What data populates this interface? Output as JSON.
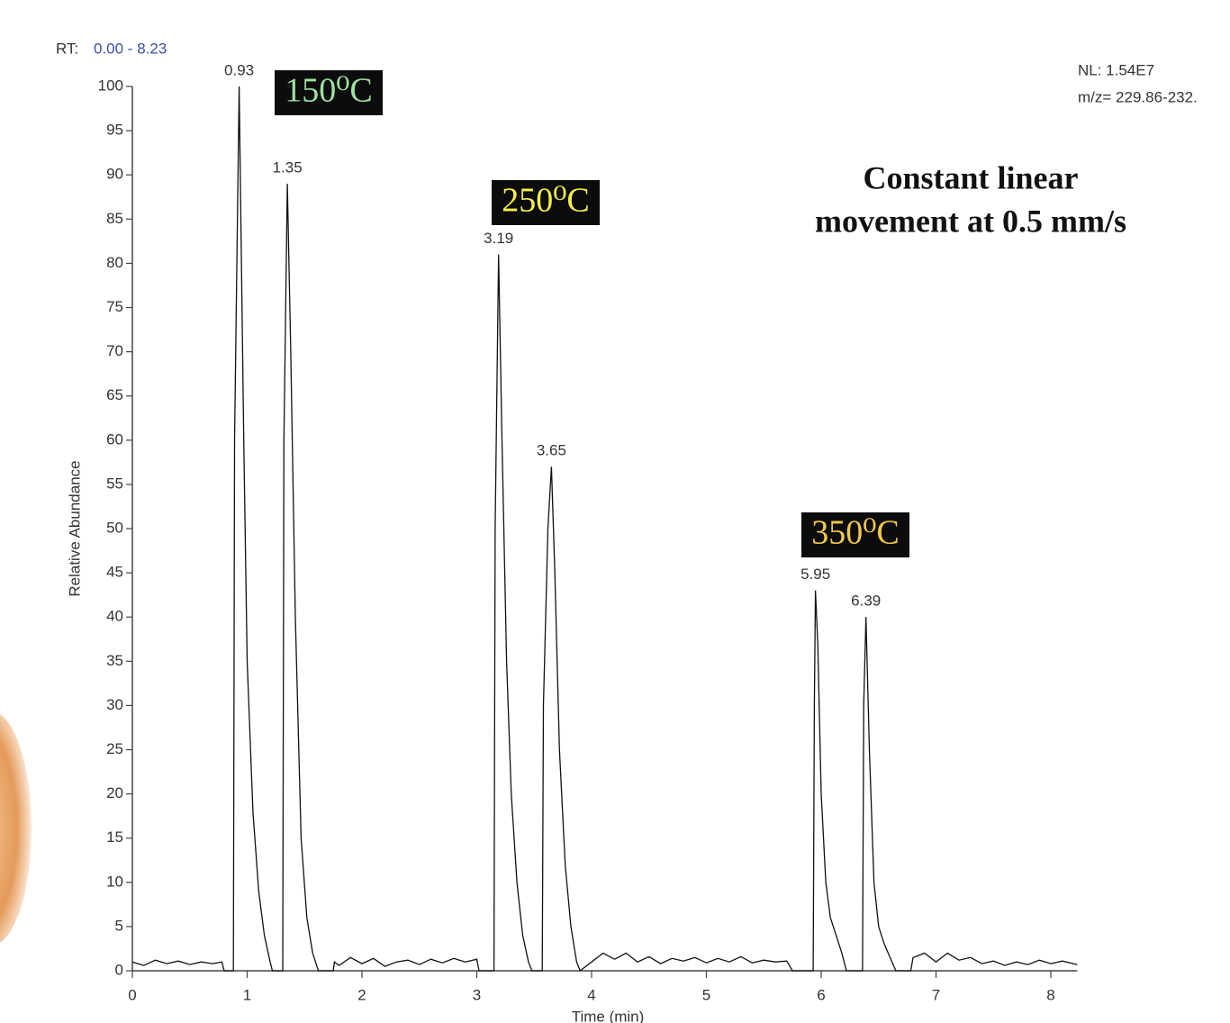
{
  "chart_data": {
    "type": "line",
    "rt_label": "RT:",
    "rt_range": "0.00 - 8.23",
    "nl": "NL: 1.54E7",
    "mz": "m/z= 229.86-232.",
    "annotation": [
      "Constant linear",
      "movement at 0.5 mm/s"
    ],
    "temperatures": [
      "150⁰C",
      "250⁰C",
      "350⁰C"
    ],
    "xlabel": "Time (min)",
    "ylabel": "Relative Abundance",
    "xlim": [
      0,
      8.23
    ],
    "ylim": [
      0,
      100
    ],
    "xticks": [
      0,
      1,
      2,
      3,
      4,
      5,
      6,
      7,
      8
    ],
    "yticks": [
      0,
      5,
      10,
      15,
      20,
      25,
      30,
      35,
      40,
      45,
      50,
      55,
      60,
      65,
      70,
      75,
      80,
      85,
      90,
      95,
      100
    ],
    "color": "#111111",
    "peak_labels": [
      0.93,
      1.35,
      3.19,
      3.65,
      5.95,
      6.39
    ],
    "x": [
      0,
      0.1,
      0.2,
      0.3,
      0.4,
      0.5,
      0.6,
      0.7,
      0.78,
      0.8,
      0.88,
      0.89,
      0.93,
      0.97,
      1.0,
      1.05,
      1.1,
      1.15,
      1.2,
      1.22,
      1.31,
      1.32,
      1.35,
      1.38,
      1.42,
      1.47,
      1.52,
      1.57,
      1.62,
      1.75,
      1.76,
      1.8,
      1.9,
      2.0,
      2.1,
      2.2,
      2.3,
      2.4,
      2.5,
      2.6,
      2.7,
      2.8,
      2.9,
      3.0,
      3.02,
      3.15,
      3.16,
      3.19,
      3.22,
      3.26,
      3.3,
      3.35,
      3.4,
      3.45,
      3.48,
      3.57,
      3.58,
      3.62,
      3.65,
      3.68,
      3.72,
      3.77,
      3.82,
      3.87,
      3.9,
      4.0,
      4.1,
      4.2,
      4.3,
      4.4,
      4.5,
      4.6,
      4.7,
      4.8,
      4.9,
      5.0,
      5.1,
      5.2,
      5.3,
      5.4,
      5.5,
      5.6,
      5.7,
      5.75,
      5.93,
      5.94,
      5.95,
      5.97,
      6.0,
      6.04,
      6.08,
      6.13,
      6.18,
      6.22,
      6.36,
      6.37,
      6.39,
      6.42,
      6.46,
      6.5,
      6.55,
      6.6,
      6.65,
      6.78,
      6.8,
      6.9,
      7.0,
      7.1,
      7.2,
      7.3,
      7.4,
      7.5,
      7.6,
      7.7,
      7.8,
      7.9,
      8.0,
      8.1,
      8.23
    ],
    "values": [
      1,
      0.6,
      1.2,
      0.8,
      1.1,
      0.7,
      1.0,
      0.8,
      1.0,
      0,
      0,
      60,
      100,
      60,
      35,
      18,
      9,
      4,
      1,
      0,
      0,
      60,
      89,
      70,
      40,
      15,
      6,
      2,
      0,
      0,
      1,
      0.6,
      1.5,
      0.8,
      1.4,
      0.5,
      1.0,
      1.2,
      0.7,
      1.3,
      0.9,
      1.4,
      1.0,
      1.3,
      0,
      0,
      50,
      81,
      60,
      35,
      20,
      10,
      4,
      1,
      0,
      0,
      30,
      50,
      57,
      45,
      25,
      12,
      5,
      1,
      0,
      1,
      2,
      1.3,
      2,
      1,
      1.6,
      0.8,
      1.4,
      1.1,
      1.5,
      0.9,
      1.4,
      1.0,
      1.6,
      0.9,
      1.2,
      1.0,
      1.1,
      0,
      0,
      30,
      43,
      37,
      20,
      10,
      6,
      4,
      2,
      0,
      0,
      30,
      40,
      25,
      10,
      5,
      3,
      1.5,
      0,
      0,
      1.5,
      2,
      1,
      2,
      1.2,
      1.5,
      0.8,
      1.1,
      0.6,
      1,
      0.7,
      1.2,
      0.8,
      1.1,
      0.7
    ]
  }
}
